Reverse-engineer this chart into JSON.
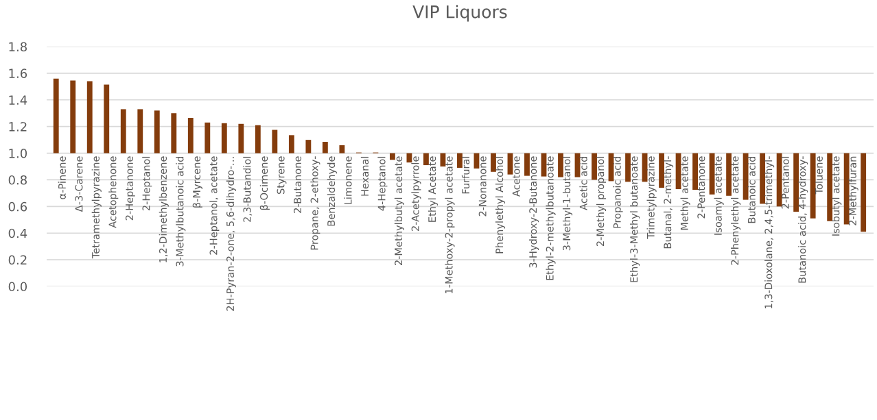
{
  "chart_data": {
    "type": "bar",
    "title": "VIP Liquors",
    "categories": [
      "α-Pinene",
      "Δ-3-Carene",
      "Tetramethylpyrazine",
      "Acetophenone",
      "2-Heptanone",
      "2-Heptanol",
      "1,2-Dimethylbenzene",
      "3-Methylbutanoic acid",
      "β-Myrcene",
      "2-Heptanol, acetate",
      "2H-Pyran-2-one, 5,6-dihydro-…",
      "2,3-Butandiol",
      "β-Ocimene",
      "Styrene",
      "2-Butanone",
      "Propane, 2-ethoxy-",
      "Benzaldehyde",
      "Limonene",
      "Hexanal",
      "4-Heptanol",
      "2-Methylbutyl acetate",
      "2-Acetylpyrrole",
      "Ethyl Acetate",
      "1-Methoxy-2-propyl acetate",
      "Furfural",
      "2-Nonanone",
      "Phenylethyl Alcohol",
      "Acetone",
      "3-Hydroxy-2-Butanone",
      "Ethyl-2-methylbutanoate",
      "3-Methyl-1-butanol",
      "Acetic acid",
      "2-Methyl propanol",
      "Propanoic acid",
      "Ethyl-3-Methyl butanoate",
      "Trimetylpyrazine",
      "Butanal, 2-methyl-",
      "Methyl acetate",
      "2-Pentanone",
      "Isoamyl acetate",
      "2-Phenylethyl acetate",
      "Butanoic acid",
      "1,3-Dioxolane, 2,4,5-trimethyl-",
      "2-Pentanol",
      "Butanoic acid, 4-hydroxy-",
      "Toluene",
      "Isobutyl acetate",
      "2-Methylfuran",
      null
    ],
    "base": [
      1,
      1,
      1,
      1,
      1,
      1,
      1,
      1,
      1,
      1,
      1,
      1,
      1,
      1,
      1,
      1,
      1,
      1,
      1,
      1,
      1,
      1,
      1,
      1,
      1,
      1,
      1,
      1,
      1,
      1,
      1,
      1,
      1,
      1,
      1,
      1,
      1,
      1,
      1,
      1,
      1,
      1,
      1,
      1,
      1,
      1,
      1,
      1,
      1
    ],
    "values": [
      0.56,
      0.545,
      0.54,
      0.515,
      0.33,
      0.33,
      0.32,
      0.3,
      0.265,
      0.23,
      0.225,
      0.22,
      0.21,
      0.175,
      0.135,
      0.1,
      0.085,
      0.06,
      0.005,
      0.005,
      -0.05,
      -0.07,
      -0.09,
      -0.1,
      -0.11,
      -0.115,
      -0.14,
      -0.16,
      -0.17,
      -0.175,
      -0.18,
      -0.18,
      -0.2,
      -0.21,
      -0.215,
      -0.215,
      -0.26,
      -0.27,
      -0.275,
      -0.31,
      -0.32,
      -0.35,
      -0.38,
      -0.4,
      -0.44,
      -0.49,
      -0.51,
      -0.535,
      -0.59
    ],
    "color": "#843c0c",
    "ylim": [
      0.0,
      1.8
    ],
    "yticks": [
      {
        "value": 0,
        "label": "0.0"
      },
      0.2,
      0.4,
      0.6,
      0.8,
      {
        "value": 1,
        "label": "1.0"
      },
      1.2,
      1.4,
      1.6,
      1.8
    ],
    "grid": "y"
  }
}
